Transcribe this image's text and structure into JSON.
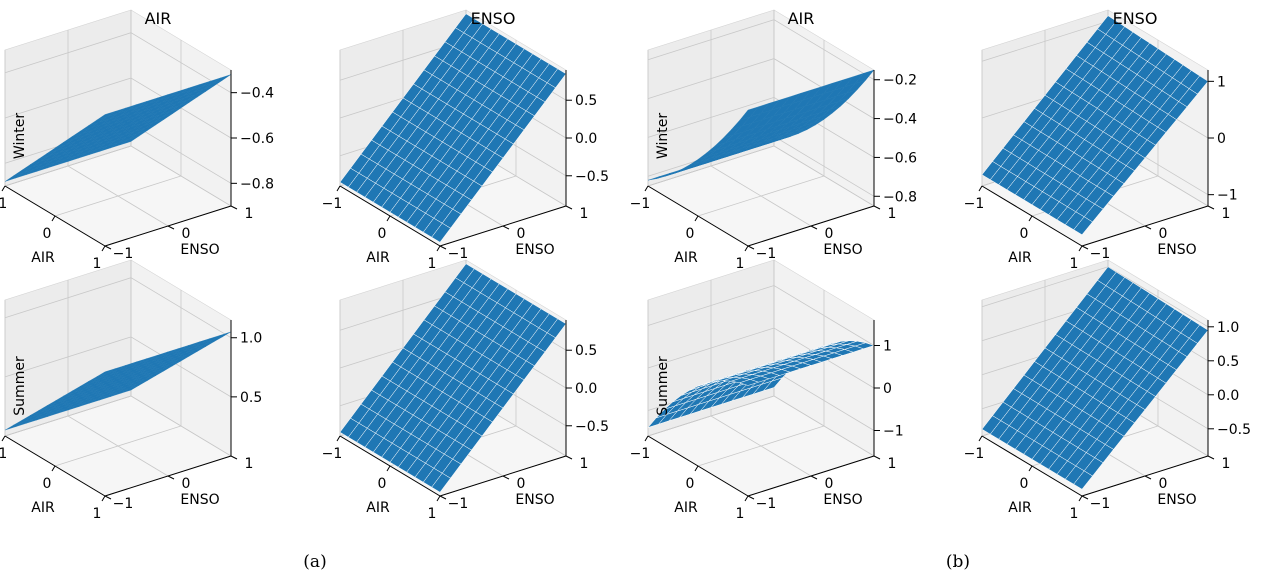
{
  "panel_labels": [
    "(a)",
    "(b)"
  ],
  "chart_data": [
    {
      "type": "surface",
      "panel": "(a)",
      "title": "AIR",
      "row_label": "Winter",
      "xlabel": "AIR",
      "ylabel": "ENSO",
      "xticks": [
        "−1",
        "0",
        "1"
      ],
      "yticks": [
        "−1",
        "0",
        "1"
      ],
      "zticks": [
        "−0.8",
        "−0.6",
        "−0.4"
      ],
      "zlim": [
        -0.9,
        -0.3
      ],
      "x": [
        -1,
        1
      ],
      "y": [
        -1,
        1
      ],
      "z_corners": {
        "x-1y-1": -0.88,
        "x1y-1": -0.32,
        "x-1y1": -0.88,
        "x1y1": -0.32
      },
      "grid": true,
      "mesh": false,
      "color": "#1f77b4"
    },
    {
      "type": "surface",
      "panel": "(a)",
      "title": "ENSO",
      "row_label": "",
      "xlabel": "AIR",
      "ylabel": "ENSO",
      "xticks": [
        "−1",
        "0",
        "1"
      ],
      "yticks": [
        "−1",
        "0",
        "1"
      ],
      "zticks": [
        "−0.5",
        "0.0",
        "0.5"
      ],
      "zlim": [
        -0.9,
        0.9
      ],
      "x": [
        -1,
        1
      ],
      "y": [
        -1,
        1
      ],
      "z_corners": {
        "x-1y-1": -0.85,
        "x1y-1": -0.85,
        "x-1y1": 0.85,
        "x1y1": 0.85
      },
      "grid": true,
      "mesh": true,
      "color": "#1f77b4"
    },
    {
      "type": "surface",
      "panel": "(b)",
      "title": "AIR",
      "row_label": "Winter",
      "xlabel": "AIR",
      "ylabel": "ENSO",
      "xticks": [
        "−1",
        "0",
        "1"
      ],
      "yticks": [
        "−1",
        "0",
        "1"
      ],
      "zticks": [
        "−0.8",
        "−0.6",
        "−0.4",
        "−0.2"
      ],
      "zlim": [
        -0.85,
        -0.15
      ],
      "x": [
        -1,
        1
      ],
      "y": [
        -1,
        1
      ],
      "z_corners": {
        "x-1y-1": -0.82,
        "x1y-1": -0.15,
        "x-1y1": -0.82,
        "x1y1": -0.15
      },
      "curvature": "convex",
      "grid": true,
      "mesh": false,
      "color": "#1f77b4"
    },
    {
      "type": "surface",
      "panel": "(b)",
      "title": "ENSO",
      "row_label": "",
      "xlabel": "AIR",
      "ylabel": "ENSO",
      "xticks": [
        "−1",
        "0",
        "1"
      ],
      "yticks": [
        "−1",
        "0",
        "1"
      ],
      "zticks": [
        "−1",
        "0",
        "1"
      ],
      "zlim": [
        -1.2,
        1.2
      ],
      "x": [
        -1,
        1
      ],
      "y": [
        -1,
        1
      ],
      "z_corners": {
        "x-1y-1": -1.0,
        "x1y-1": -1.0,
        "x-1y1": 1.1,
        "x1y1": 1.0
      },
      "grid": true,
      "mesh": true,
      "color": "#1f77b4"
    },
    {
      "type": "surface",
      "panel": "(a)",
      "title": "",
      "row_label": "Summer",
      "xlabel": "AIR",
      "ylabel": "ENSO",
      "xticks": [
        "−1",
        "0",
        "1"
      ],
      "yticks": [
        "−1",
        "0",
        "1"
      ],
      "zticks": [
        "0.5",
        "1.0"
      ],
      "zlim": [
        0.0,
        1.15
      ],
      "x": [
        -1,
        1
      ],
      "y": [
        -1,
        1
      ],
      "z_corners": {
        "x-1y-1": 0.05,
        "x1y-1": 1.05,
        "x-1y1": 0.05,
        "x1y1": 1.05
      },
      "grid": true,
      "mesh": false,
      "color": "#1f77b4"
    },
    {
      "type": "surface",
      "panel": "(a)",
      "title": "",
      "row_label": "",
      "xlabel": "AIR",
      "ylabel": "ENSO",
      "xticks": [
        "−1",
        "0",
        "1"
      ],
      "yticks": [
        "−1",
        "0",
        "1"
      ],
      "zticks": [
        "−0.5",
        "0.0",
        "0.5"
      ],
      "zlim": [
        -0.9,
        0.9
      ],
      "x": [
        -1,
        1
      ],
      "y": [
        -1,
        1
      ],
      "z_corners": {
        "x-1y-1": -0.85,
        "x1y-1": -0.85,
        "x-1y1": 0.85,
        "x1y1": 0.85
      },
      "grid": true,
      "mesh": true,
      "color": "#1f77b4"
    },
    {
      "type": "surface",
      "panel": "(b)",
      "title": "",
      "row_label": "Summer",
      "xlabel": "AIR",
      "ylabel": "ENSO",
      "xticks": [
        "−1",
        "0",
        "1"
      ],
      "yticks": [
        "−1",
        "0",
        "1"
      ],
      "zticks": [
        "−1",
        "0",
        "1"
      ],
      "zlim": [
        -1.6,
        1.6
      ],
      "x": [
        -1,
        1
      ],
      "y": [
        -1,
        1
      ],
      "z_corners": {
        "x-1y-1": -1.4,
        "x1y-1": 1.0,
        "x-1y1": -1.4,
        "x1y1": 1.0
      },
      "curvature": "concave",
      "grid": true,
      "mesh": true,
      "color": "#1f77b4"
    },
    {
      "type": "surface",
      "panel": "(b)",
      "title": "",
      "row_label": "",
      "xlabel": "AIR",
      "ylabel": "ENSO",
      "xticks": [
        "−1",
        "0",
        "1"
      ],
      "yticks": [
        "−1",
        "0",
        "1"
      ],
      "zticks": [
        "−0.5",
        "0.0",
        "0.5",
        "1.0"
      ],
      "zlim": [
        -0.9,
        1.1
      ],
      "x": [
        -1,
        1
      ],
      "y": [
        -1,
        1
      ],
      "z_corners": {
        "x-1y-1": -0.8,
        "x1y-1": -0.8,
        "x-1y1": 1.0,
        "x1y1": 0.95
      },
      "grid": true,
      "mesh": true,
      "color": "#1f77b4"
    }
  ]
}
